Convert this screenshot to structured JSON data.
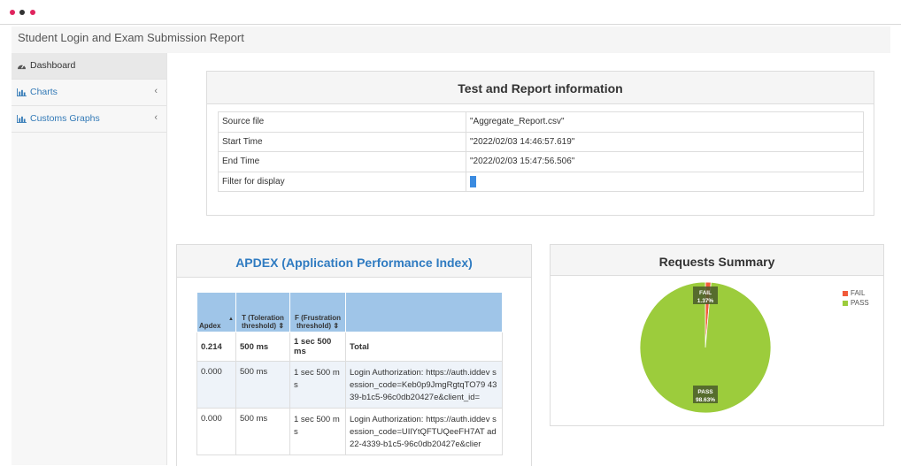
{
  "window": {
    "dots": [
      "#e0245e",
      "#333333",
      "#e0245e"
    ]
  },
  "header": {
    "title": "Student Login and Exam Submission Report"
  },
  "sidebar": {
    "items": [
      {
        "label": "Dashboard",
        "icon": "dashboard-icon"
      },
      {
        "label": "Charts",
        "icon": "bar-chart-icon"
      },
      {
        "label": "Customs Graphs",
        "icon": "bar-chart-icon"
      }
    ]
  },
  "test_info": {
    "title": "Test and Report information",
    "rows": [
      {
        "key": "Source file",
        "value": "\"Aggregate_Report.csv\""
      },
      {
        "key": "Start Time",
        "value": "\"2022/02/03 14:46:57.619\""
      },
      {
        "key": "End Time",
        "value": "\"2022/02/03 15:47:56.506\""
      },
      {
        "key": "Filter for display",
        "value": ""
      }
    ]
  },
  "apdex": {
    "title": "APDEX (Application Performance Index)",
    "columns": [
      "Apdex",
      "T (Toleration threshold)",
      "F (Frustration threshold)",
      ""
    ],
    "total": {
      "apdex": "0.214",
      "t": "500 ms",
      "f": "1 sec 500 ms",
      "label": "Total"
    },
    "rows": [
      {
        "apdex": "0.000",
        "t": "500 ms",
        "f": "1 sec 500 ms",
        "label": "Login Authorization: https://auth.iddev session_code=Keb0p9JmgRgtqTO79 4339-b1c5-96c0db20427e&client_id="
      },
      {
        "apdex": "0.000",
        "t": "500 ms",
        "f": "1 sec 500 ms",
        "label": "Login Authorization: https://auth.iddev session_code=UIlYtQFTUQeeFH7AT ad22-4339-b1c5-96c0db20427e&clier"
      }
    ]
  },
  "requests_summary": {
    "title": "Requests Summary",
    "colors": {
      "FAIL": "#f15a3a",
      "PASS": "#9ccc3c"
    }
  },
  "chart_data": {
    "type": "pie",
    "title": "Requests Summary",
    "categories": [
      "FAIL",
      "PASS"
    ],
    "values": [
      1.37,
      98.63
    ],
    "labels": [
      "FAIL\n1.37%",
      "PASS\n98.63%"
    ],
    "legend": "top-right"
  }
}
